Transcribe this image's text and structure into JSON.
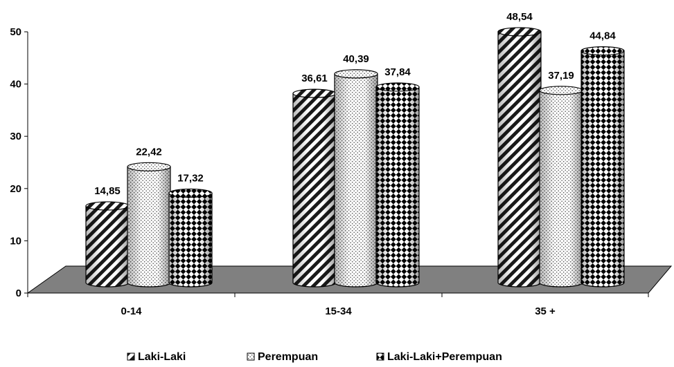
{
  "chart_data": {
    "type": "bar",
    "categories": [
      "0-14",
      "15-34",
      "35 +"
    ],
    "series": [
      {
        "name": "Laki-Laki",
        "values": [
          14.85,
          36.61,
          48.54
        ],
        "pattern": "diagonal-stripes"
      },
      {
        "name": "Perempuan",
        "values": [
          22.42,
          40.39,
          37.19
        ],
        "pattern": "dots"
      },
      {
        "name": "Laki-Laki+Perempuan",
        "values": [
          17.32,
          37.84,
          44.84
        ],
        "pattern": "checkerboard-diamond"
      }
    ],
    "value_labels": [
      [
        "14,85",
        "36,61",
        "48,54"
      ],
      [
        "22,42",
        "40,39",
        "37,19"
      ],
      [
        "17,32",
        "37,84",
        "44,84"
      ]
    ],
    "y_ticks": [
      "0",
      "10",
      "20",
      "30",
      "40",
      "50"
    ],
    "ylim": [
      0,
      50
    ],
    "grid": false,
    "legend_position": "bottom",
    "floor_color": "#808080",
    "title": "",
    "xlabel": "",
    "ylabel": ""
  }
}
